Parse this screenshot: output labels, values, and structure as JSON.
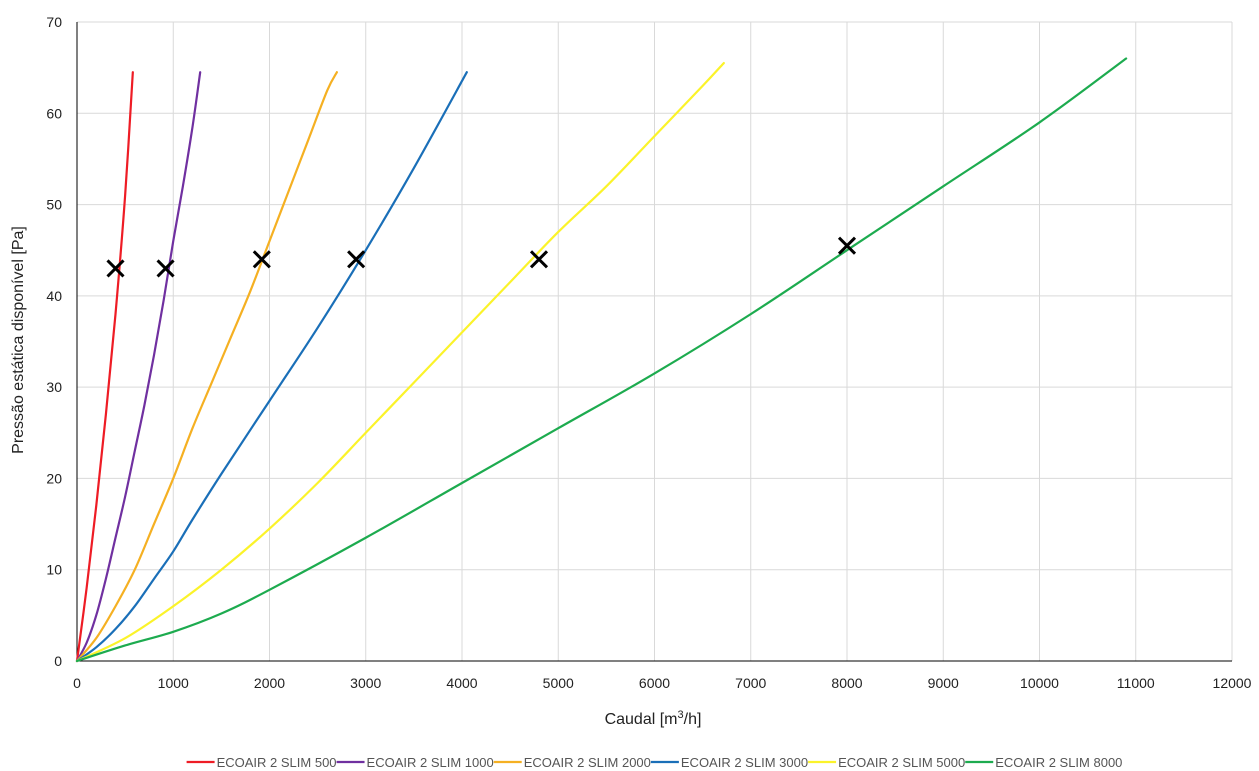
{
  "chart_data": {
    "type": "line",
    "title": "",
    "xlabel": {
      "prefix": "Caudal [m",
      "sup": "3",
      "suffix": "/h]"
    },
    "ylabel": "Pressão estática disponível [Pa]",
    "xlim": [
      0,
      12000
    ],
    "ylim": [
      0,
      70
    ],
    "xticks": [
      0,
      1000,
      2000,
      3000,
      4000,
      5000,
      6000,
      7000,
      8000,
      9000,
      10000,
      11000,
      12000
    ],
    "yticks": [
      0,
      10,
      20,
      30,
      40,
      50,
      60,
      70
    ],
    "grid": true,
    "legend_position": "bottom",
    "series": [
      {
        "name": "ECOAIR 2 SLIM 500",
        "color": "#ee1c25",
        "x": [
          0,
          100,
          200,
          300,
          400,
          500,
          580
        ],
        "y": [
          0,
          8,
          17,
          27,
          38,
          51,
          64.5
        ]
      },
      {
        "name": "ECOAIR 2 SLIM 1000",
        "color": "#7030a0",
        "x": [
          0,
          100,
          200,
          300,
          400,
          500,
          600,
          700,
          800,
          900,
          1000,
          1100,
          1200,
          1280
        ],
        "y": [
          0,
          2,
          5,
          9,
          13.5,
          18,
          23,
          28,
          33.5,
          39.5,
          46,
          52,
          58.5,
          64.5
        ]
      },
      {
        "name": "ECOAIR 2 SLIM 2000",
        "color": "#f5b022",
        "x": [
          0,
          200,
          400,
          600,
          800,
          1000,
          1200,
          1400,
          1600,
          1800,
          2000,
          2200,
          2400,
          2600,
          2700
        ],
        "y": [
          0,
          2.5,
          6,
          10,
          15,
          20,
          25.5,
          30.5,
          35.5,
          40.5,
          46,
          51.5,
          57,
          62.5,
          64.5
        ]
      },
      {
        "name": "ECOAIR 2 SLIM 3000",
        "color": "#1a6fb8",
        "x": [
          0,
          200,
          400,
          600,
          800,
          1000,
          1200,
          1500,
          2000,
          2500,
          3000,
          3500,
          4050
        ],
        "y": [
          0,
          1.5,
          3.5,
          6,
          9,
          12,
          15.5,
          20.5,
          28.5,
          36.5,
          45,
          54,
          64.5
        ]
      },
      {
        "name": "ECOAIR 2 SLIM 5000",
        "color": "#fbf32a",
        "x": [
          0,
          500,
          1000,
          1500,
          2000,
          2500,
          3000,
          3500,
          4000,
          4500,
          5000,
          5500,
          6000,
          6500,
          6720
        ],
        "y": [
          0,
          2.5,
          6,
          10,
          14.5,
          19.5,
          25,
          30.5,
          36,
          41.5,
          47,
          52,
          57.5,
          63,
          65.5
        ]
      },
      {
        "name": "ECOAIR 2 SLIM 8000",
        "color": "#1dab4f",
        "x": [
          0,
          500,
          1000,
          1500,
          2000,
          3000,
          4000,
          5000,
          6000,
          7000,
          8000,
          9000,
          10000,
          10900
        ],
        "y": [
          0,
          1.7,
          3.2,
          5.2,
          7.8,
          13.5,
          19.5,
          25.5,
          31.5,
          38,
          45,
          52,
          59,
          66
        ]
      }
    ],
    "markers": [
      {
        "x": 400,
        "y": 43
      },
      {
        "x": 920,
        "y": 43
      },
      {
        "x": 1920,
        "y": 44
      },
      {
        "x": 2900,
        "y": 44
      },
      {
        "x": 4800,
        "y": 44
      },
      {
        "x": 8000,
        "y": 45.5
      }
    ]
  }
}
